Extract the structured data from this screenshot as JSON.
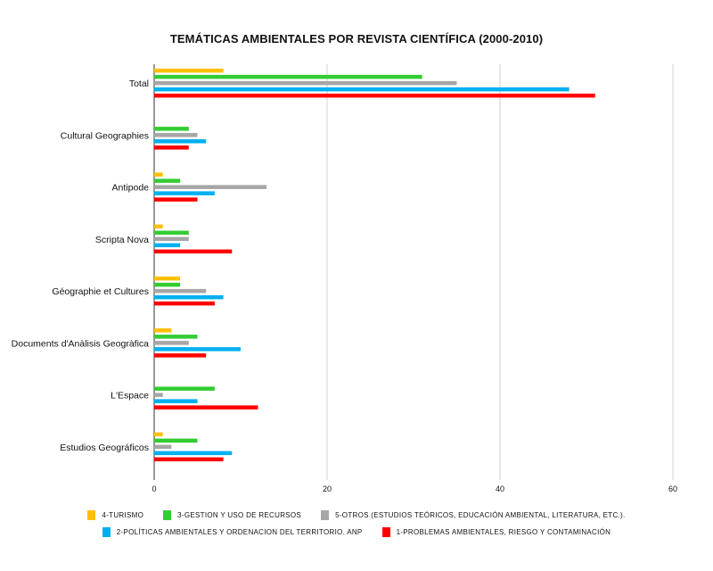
{
  "chart_data": {
    "type": "bar",
    "orientation": "horizontal",
    "title": "TEMÁTICAS AMBIENTALES POR REVISTA CIENTÍFICA (2000-2010)",
    "categories": [
      "Total",
      "Cultural Geographies",
      "Antipode",
      "Scripta Nova",
      "Géographie et Cultures",
      "Documents d'Anàlisis Geogràfica",
      "L'Espace",
      "Estudios Geográficos"
    ],
    "xlim": [
      0,
      60
    ],
    "xticks": [
      "0",
      "20",
      "40",
      "60"
    ],
    "grid": true,
    "legend_position": "bottom",
    "series": [
      {
        "name": "4-TURISMO",
        "color": "#FFC000",
        "values": [
          8,
          0,
          1,
          1,
          3,
          2,
          0,
          1
        ]
      },
      {
        "name": "3-GESTION Y USO DE RECURSOS",
        "color": "#33CC33",
        "values": [
          31,
          4,
          3,
          4,
          3,
          5,
          7,
          5
        ]
      },
      {
        "name": "5-OTROS (ESTUDIOS TEÓRICOS, EDUCACIÓN AMBIENTAL, LITERATURA, ETC.).",
        "color": "#A6A6A6",
        "values": [
          35,
          5,
          13,
          4,
          6,
          4,
          1,
          2
        ]
      },
      {
        "name": "2-POLÍTICAS AMBIENTALES Y ORDENACION DEL TERRITORIO. ANP",
        "color": "#00B0F0",
        "values": [
          48,
          6,
          7,
          3,
          8,
          10,
          5,
          9
        ]
      },
      {
        "name": "1-PROBLEMAS AMBIENTALES, RIESGO Y CONTAMINACIÓN",
        "color": "#FF0000",
        "values": [
          51,
          4,
          5,
          9,
          7,
          6,
          12,
          8
        ]
      }
    ]
  }
}
